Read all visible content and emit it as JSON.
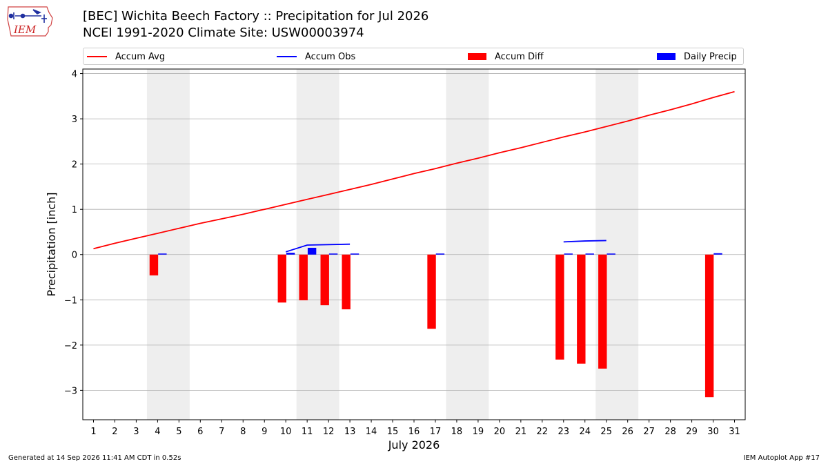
{
  "header": {
    "title_line1": "[BEC] Wichita Beech Factory :: Precipitation for Jul 2026",
    "title_line2": "NCEI 1991-2020 Climate Site: USW00003974",
    "logo_text": "IEM"
  },
  "legend": {
    "accum_avg": "Accum Avg",
    "accum_obs": "Accum Obs",
    "accum_diff": "Accum Diff",
    "daily_precip": "Daily Precip"
  },
  "footer": {
    "generated": "Generated at 14 Sep 2026 11:41 AM CDT in 0.52s",
    "app": "IEM Autoplot App #17"
  },
  "colors": {
    "accum_avg": "#ff0000",
    "accum_obs": "#0000ff",
    "accum_diff": "#ff0000",
    "daily_precip": "#0000ff",
    "weekend_shade": "#eeeeee",
    "grid": "#b0b0b0"
  },
  "chart_data": {
    "type": "bar",
    "xlabel": "July 2026",
    "ylabel": "Precipitation [inch]",
    "xlim": [
      0.5,
      31.5
    ],
    "ylim": [
      -3.65,
      4.1
    ],
    "yticks": [
      -3,
      -2,
      -1,
      0,
      1,
      2,
      3,
      4
    ],
    "ytick_labels": [
      "−3",
      "−2",
      "−1",
      "0",
      "1",
      "2",
      "3",
      "4"
    ],
    "days": [
      1,
      2,
      3,
      4,
      5,
      6,
      7,
      8,
      9,
      10,
      11,
      12,
      13,
      14,
      15,
      16,
      17,
      18,
      19,
      20,
      21,
      22,
      23,
      24,
      25,
      26,
      27,
      28,
      29,
      30,
      31
    ],
    "grid": "horizontal",
    "legend_position": "top",
    "shaded_weekends": [
      [
        4,
        5
      ],
      [
        11,
        12
      ],
      [
        18,
        19
      ],
      [
        25,
        26
      ]
    ],
    "series": [
      {
        "name": "Accum Avg",
        "kind": "line",
        "x": [
          1,
          2,
          3,
          4,
          5,
          6,
          7,
          8,
          9,
          10,
          11,
          12,
          13,
          14,
          15,
          16,
          17,
          18,
          19,
          20,
          21,
          22,
          23,
          24,
          25,
          26,
          27,
          28,
          29,
          30,
          31
        ],
        "values": [
          0.13,
          0.25,
          0.36,
          0.47,
          0.58,
          0.69,
          0.79,
          0.89,
          1.0,
          1.11,
          1.22,
          1.33,
          1.44,
          1.55,
          1.67,
          1.79,
          1.9,
          2.02,
          2.13,
          2.25,
          2.36,
          2.48,
          2.6,
          2.71,
          2.83,
          2.95,
          3.08,
          3.2,
          3.33,
          3.47,
          3.6
        ]
      },
      {
        "name": "Accum Obs",
        "kind": "line",
        "segments": [
          {
            "x": [
              10,
              11,
              12,
              13
            ],
            "values": [
              0.06,
              0.21,
              0.22,
              0.23
            ]
          },
          {
            "x": [
              23,
              24,
              25
            ],
            "values": [
              0.28,
              0.3,
              0.31
            ]
          }
        ]
      },
      {
        "name": "Accum Diff",
        "kind": "bar",
        "x": [
          4,
          10,
          11,
          12,
          13,
          17,
          23,
          24,
          25,
          30
        ],
        "values": [
          -0.46,
          -1.06,
          -1.01,
          -1.12,
          -1.21,
          -1.64,
          -2.32,
          -2.41,
          -2.52,
          -3.15
        ]
      },
      {
        "name": "Daily Precip",
        "kind": "bar",
        "x": [
          4,
          10,
          11,
          12,
          13,
          17,
          23,
          24,
          25,
          30
        ],
        "values": [
          0.01,
          0.04,
          0.15,
          0.01,
          0.01,
          0.02,
          0.02,
          0.02,
          0.01,
          0.03
        ]
      }
    ]
  }
}
